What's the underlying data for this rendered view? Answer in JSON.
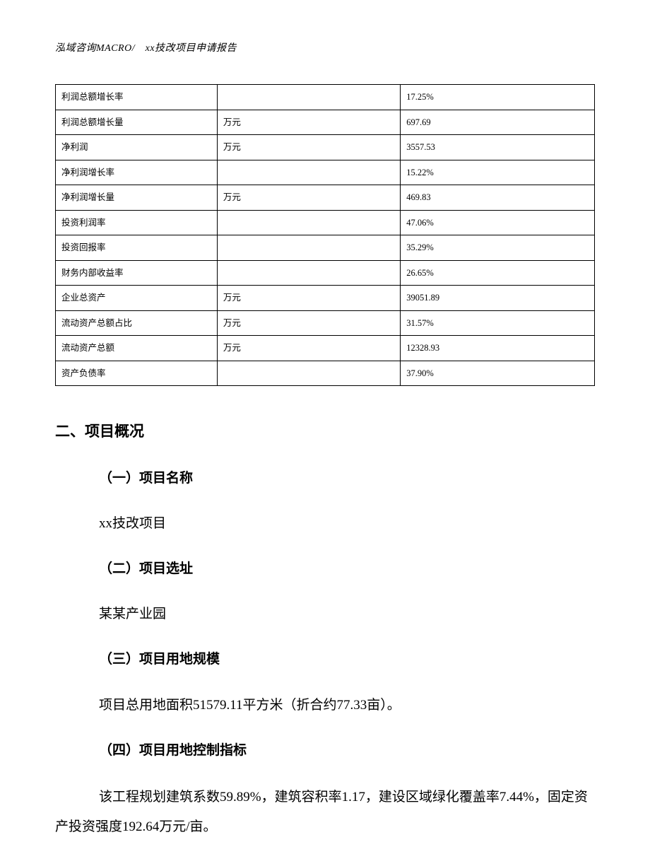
{
  "header": {
    "text": "泓域咨询MACRO/　xx技改项目申请报告"
  },
  "table": {
    "rows": [
      {
        "label": "利润总额增长率",
        "unit": "",
        "value": "17.25%"
      },
      {
        "label": "利润总额增长量",
        "unit": "万元",
        "value": "697.69"
      },
      {
        "label": "净利润",
        "unit": "万元",
        "value": "3557.53"
      },
      {
        "label": "净利润增长率",
        "unit": "",
        "value": "15.22%"
      },
      {
        "label": "净利润增长量",
        "unit": "万元",
        "value": "469.83"
      },
      {
        "label": "投资利润率",
        "unit": "",
        "value": "47.06%"
      },
      {
        "label": "投资回报率",
        "unit": "",
        "value": "35.29%"
      },
      {
        "label": "财务内部收益率",
        "unit": "",
        "value": "26.65%"
      },
      {
        "label": "企业总资产",
        "unit": "万元",
        "value": "39051.89"
      },
      {
        "label": "流动资产总额占比",
        "unit": "万元",
        "value": "31.57%"
      },
      {
        "label": "流动资产总额",
        "unit": "万元",
        "value": "12328.93"
      },
      {
        "label": "资产负债率",
        "unit": "",
        "value": "37.90%"
      }
    ]
  },
  "section": {
    "title": "二、项目概况",
    "subsections": [
      {
        "heading": "（一）项目名称",
        "body": "xx技改项目"
      },
      {
        "heading": "（二）项目选址",
        "body": "某某产业园"
      },
      {
        "heading": "（三）项目用地规模",
        "body": "项目总用地面积51579.11平方米（折合约77.33亩）。"
      },
      {
        "heading": "（四）项目用地控制指标",
        "body": "该工程规划建筑系数59.89%，建筑容积率1.17，建设区域绿化覆盖率7.44%，固定资产投资强度192.64万元/亩。"
      }
    ]
  }
}
